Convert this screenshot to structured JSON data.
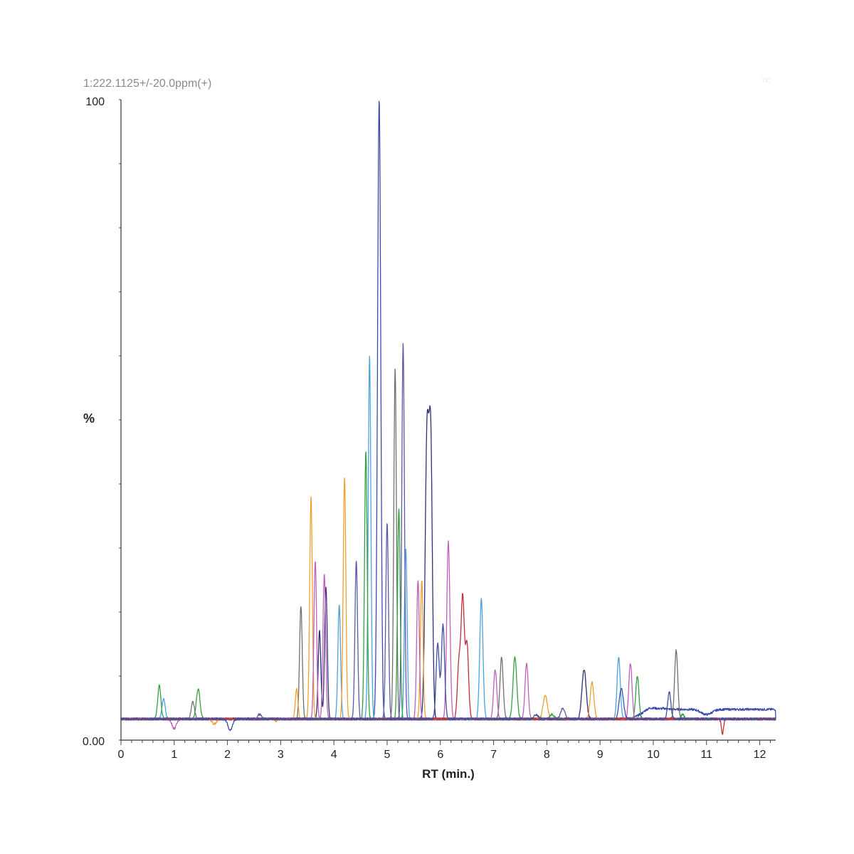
{
  "header": {
    "trace_label": "1:222.1125+/-20.0ppm(+)",
    "corner_label": "TIC"
  },
  "chart_data": {
    "type": "line",
    "title": "",
    "xlabel": "RT (min.)",
    "ylabel": "%",
    "xlim": [
      0,
      12.3
    ],
    "ylim": [
      0,
      100
    ],
    "x_ticks": [
      0,
      1,
      2,
      3,
      4,
      5,
      6,
      7,
      8,
      9,
      10,
      11,
      12
    ],
    "y_tick_labels": {
      "top": "100",
      "bottom": "0.00"
    },
    "grid": false,
    "baseline": 3.3,
    "series": [
      {
        "color": "#3b4bab",
        "peaks": [
          [
            4.85,
            100,
            0.03
          ],
          [
            9.9,
            4.5,
            0.15
          ],
          [
            11.0,
            2.5,
            0.1
          ]
        ],
        "tail": [
          [
            9.8,
            12.3,
            1.5
          ]
        ]
      },
      {
        "color": "#4aa3df",
        "peaks": [
          [
            4.67,
            60,
            0.025
          ],
          [
            0.8,
            6.5,
            0.03
          ],
          [
            6.77,
            22,
            0.03
          ],
          [
            9.35,
            13,
            0.03
          ],
          [
            5.35,
            30,
            0.025
          ],
          [
            4.1,
            21,
            0.025
          ]
        ]
      },
      {
        "color": "#707070",
        "peaks": [
          [
            5.15,
            58,
            0.025
          ],
          [
            3.38,
            21,
            0.025
          ],
          [
            10.43,
            14,
            0.03
          ],
          [
            7.15,
            13,
            0.03
          ],
          [
            1.35,
            6,
            0.03
          ]
        ]
      },
      {
        "color": "#5a5aa6",
        "peaks": [
          [
            5.3,
            62,
            0.025
          ],
          [
            5.0,
            34,
            0.025
          ],
          [
            4.42,
            28,
            0.025
          ],
          [
            2.6,
            4,
            0.04
          ],
          [
            8.3,
            5,
            0.04
          ]
        ]
      },
      {
        "color": "#2e2f7a",
        "peaks": [
          [
            5.75,
            48,
            0.035
          ],
          [
            5.82,
            44,
            0.03
          ],
          [
            3.73,
            17,
            0.025
          ],
          [
            8.7,
            11,
            0.04
          ],
          [
            3.85,
            24,
            0.025
          ]
        ]
      },
      {
        "color": "#f0a030",
        "peaks": [
          [
            3.57,
            38,
            0.025
          ],
          [
            4.2,
            41,
            0.025
          ],
          [
            5.65,
            25,
            0.025
          ],
          [
            3.3,
            8,
            0.025
          ],
          [
            7.97,
            7,
            0.04
          ],
          [
            8.85,
            9,
            0.035
          ],
          [
            1.75,
            2.5,
            0.04
          ],
          [
            2.92,
            3,
            0.03
          ]
        ]
      },
      {
        "color": "#34a040",
        "peaks": [
          [
            4.6,
            45,
            0.025
          ],
          [
            0.72,
            8.5,
            0.03
          ],
          [
            1.45,
            8,
            0.035
          ],
          [
            5.22,
            36,
            0.025
          ],
          [
            7.4,
            13,
            0.035
          ],
          [
            9.7,
            10,
            0.03
          ],
          [
            8.1,
            4,
            0.04
          ],
          [
            10.55,
            4,
            0.03
          ]
        ]
      },
      {
        "color": "#c060b8",
        "peaks": [
          [
            6.15,
            31,
            0.03
          ],
          [
            3.65,
            28,
            0.025
          ],
          [
            3.82,
            26,
            0.025
          ],
          [
            5.58,
            25,
            0.025
          ],
          [
            7.62,
            12,
            0.03
          ],
          [
            9.57,
            12,
            0.03
          ],
          [
            7.03,
            11,
            0.03
          ],
          [
            1.0,
            1.8,
            0.04
          ]
        ]
      },
      {
        "color": "#c0303a",
        "peaks": [
          [
            6.42,
            22,
            0.03
          ],
          [
            6.5,
            15,
            0.03
          ],
          [
            6.35,
            12,
            0.03
          ],
          [
            11.3,
            1,
            0.02
          ]
        ]
      },
      {
        "color": "#404fa0",
        "peaks": [
          [
            5.95,
            15,
            0.03
          ],
          [
            6.05,
            18,
            0.03
          ],
          [
            7.8,
            4,
            0.04
          ],
          [
            10.3,
            7.5,
            0.03
          ],
          [
            2.05,
            1.5,
            0.04
          ],
          [
            9.4,
            8,
            0.04
          ]
        ]
      }
    ]
  }
}
